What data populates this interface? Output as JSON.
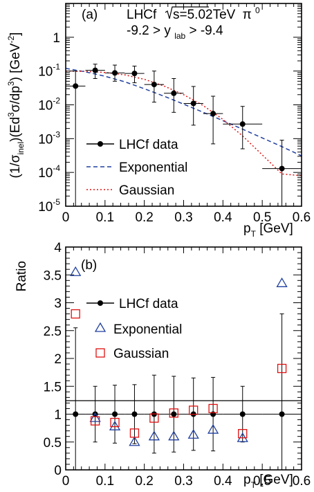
{
  "chart_data": [
    {
      "type": "scatter",
      "panel_label": "(a)",
      "header": {
        "experiment": "LHCf",
        "energy_pre": "s=5.02TeV",
        "particle": "π",
        "particle_sup": "0",
        "rapidity_left": "-9.2 > y",
        "rapidity_sub": "lab",
        "rapidity_right": " > -9.4"
      },
      "xlabel": "p",
      "xlabel_sub": "T",
      "xlabel_unit": " [GeV]",
      "ylabel": {
        "p1": "(1/σ",
        "p1_sub": "inel",
        "p2": ")(Ed",
        "p2_sup": "3",
        "p3": "σ/dp",
        "p3_sup": "3",
        "p4": ") [GeV",
        "p4_sup": "-2",
        "p5": "]"
      },
      "xlim": [
        0,
        0.6
      ],
      "ylim": [
        1e-05,
        10
      ],
      "yscale": "log",
      "xticks": [
        "0",
        "0.1",
        "0.2",
        "0.3",
        "0.4",
        "0.5",
        "0.6"
      ],
      "yticks": [
        {
          "base": "10",
          "exp": "-5",
          "value": 1e-05
        },
        {
          "base": "10",
          "exp": "-4",
          "value": 0.0001
        },
        {
          "base": "10",
          "exp": "-3",
          "value": 0.001
        },
        {
          "base": "10",
          "exp": "-2",
          "value": 0.01
        },
        {
          "base": "10",
          "exp": "-1",
          "value": 0.1
        },
        {
          "base": "1",
          "exp": "",
          "value": 1
        }
      ],
      "series": [
        {
          "name": "LHCf data",
          "color": "#000000",
          "marker": "filled-circle",
          "points": [
            {
              "x": 0.025,
              "y": 0.036,
              "xerr": 0.025,
              "ylo": 1e-05,
              "yhi": 0.1
            },
            {
              "x": 0.075,
              "y": 0.105,
              "xerr": 0.025,
              "ylo": 0.06,
              "yhi": 0.16
            },
            {
              "x": 0.125,
              "y": 0.088,
              "xerr": 0.025,
              "ylo": 0.05,
              "yhi": 0.15
            },
            {
              "x": 0.175,
              "y": 0.085,
              "xerr": 0.025,
              "ylo": 0.045,
              "yhi": 0.14
            },
            {
              "x": 0.225,
              "y": 0.04,
              "xerr": 0.025,
              "ylo": 0.012,
              "yhi": 0.1
            },
            {
              "x": 0.275,
              "y": 0.022,
              "xerr": 0.025,
              "ylo": 0.006,
              "yhi": 0.06
            },
            {
              "x": 0.325,
              "y": 0.011,
              "xerr": 0.025,
              "ylo": 0.0025,
              "yhi": 0.035
            },
            {
              "x": 0.375,
              "y": 0.0055,
              "xerr": 0.025,
              "ylo": 0.0007,
              "yhi": 0.018
            },
            {
              "x": 0.45,
              "y": 0.0027,
              "xerr": 0.05,
              "ylo": 0.0005,
              "yhi": 0.009
            },
            {
              "x": 0.55,
              "y": 0.00013,
              "xerr": 0.05,
              "ylo": 1e-05,
              "yhi": 0.0009
            }
          ]
        },
        {
          "name": "Exponential",
          "color": "#1f3f9f",
          "line": "dashed",
          "x": [
            0,
            0.05,
            0.1,
            0.15,
            0.2,
            0.25,
            0.3,
            0.35,
            0.4,
            0.45,
            0.5,
            0.55,
            0.6
          ],
          "y": [
            0.12,
            0.095,
            0.07,
            0.048,
            0.03,
            0.018,
            0.0105,
            0.006,
            0.0034,
            0.0019,
            0.00105,
            0.00058,
            0.00031
          ]
        },
        {
          "name": "Gaussian",
          "color": "#e01010",
          "line": "dotted",
          "x": [
            0,
            0.05,
            0.1,
            0.15,
            0.2,
            0.25,
            0.3,
            0.35,
            0.4,
            0.45,
            0.5,
            0.55,
            0.6
          ],
          "y": [
            0.1,
            0.098,
            0.091,
            0.077,
            0.057,
            0.036,
            0.02,
            0.0095,
            0.0037,
            0.0012,
            0.00033,
            9e-05,
            8e-05
          ]
        }
      ],
      "legend": [
        "LHCf data",
        "Exponential",
        "Gaussian"
      ]
    },
    {
      "type": "scatter",
      "panel_label": "(b)",
      "ylabel": "Ratio",
      "xlabel": "p",
      "xlabel_sub": "T",
      "xlabel_unit": " [GeV]",
      "xlim": [
        0,
        0.6
      ],
      "ylim": [
        0,
        4
      ],
      "xticks": [
        "0",
        "0.1",
        "0.2",
        "0.3",
        "0.4",
        "0.5",
        "0.6"
      ],
      "yticks": [
        "0",
        "0.5",
        "1",
        "1.5",
        "2",
        "2.5",
        "3",
        "3.5",
        "4"
      ],
      "reference_line": 1,
      "series": [
        {
          "name": "LHCf data",
          "color": "#000000",
          "marker": "filled-circle",
          "points": [
            {
              "x": 0.025,
              "y": 1,
              "xerr": 0.025,
              "ylo": 0,
              "yhi": 2.55
            },
            {
              "x": 0.075,
              "y": 1,
              "xerr": 0.025,
              "ylo": 0.5,
              "yhi": 1.5
            },
            {
              "x": 0.125,
              "y": 1,
              "xerr": 0.025,
              "ylo": 0.48,
              "yhi": 1.52
            },
            {
              "x": 0.175,
              "y": 1,
              "xerr": 0.025,
              "ylo": 0.47,
              "yhi": 1.53
            },
            {
              "x": 0.225,
              "y": 1,
              "xerr": 0.025,
              "ylo": 0.3,
              "yhi": 1.7
            },
            {
              "x": 0.275,
              "y": 1,
              "xerr": 0.025,
              "ylo": 0.32,
              "yhi": 1.68
            },
            {
              "x": 0.325,
              "y": 1,
              "xerr": 0.025,
              "ylo": 0.35,
              "yhi": 1.65
            },
            {
              "x": 0.375,
              "y": 1,
              "xerr": 0.025,
              "ylo": 0.34,
              "yhi": 1.66
            },
            {
              "x": 0.45,
              "y": 1,
              "xerr": 0.05,
              "ylo": 0.5,
              "yhi": 1.5
            },
            {
              "x": 0.55,
              "y": 1,
              "xerr": 0.05,
              "ylo": 0,
              "yhi": 2.8
            }
          ]
        },
        {
          "name": "Exponential",
          "color": "#1f3f9f",
          "marker": "open-triangle",
          "points": [
            {
              "x": 0.025,
              "y": 3.55
            },
            {
              "x": 0.075,
              "y": 0.93
            },
            {
              "x": 0.125,
              "y": 0.78
            },
            {
              "x": 0.175,
              "y": 0.5
            },
            {
              "x": 0.225,
              "y": 0.6
            },
            {
              "x": 0.275,
              "y": 0.6
            },
            {
              "x": 0.325,
              "y": 0.63
            },
            {
              "x": 0.375,
              "y": 0.72
            },
            {
              "x": 0.45,
              "y": 0.57
            },
            {
              "x": 0.55,
              "y": 3.35
            }
          ]
        },
        {
          "name": "Gaussian",
          "color": "#e01010",
          "marker": "open-square",
          "points": [
            {
              "x": 0.025,
              "y": 2.8
            },
            {
              "x": 0.075,
              "y": 0.88
            },
            {
              "x": 0.125,
              "y": 0.85
            },
            {
              "x": 0.175,
              "y": 0.66
            },
            {
              "x": 0.225,
              "y": 0.93
            },
            {
              "x": 0.275,
              "y": 1.02
            },
            {
              "x": 0.325,
              "y": 1.07
            },
            {
              "x": 0.375,
              "y": 1.1
            },
            {
              "x": 0.45,
              "y": 0.65
            },
            {
              "x": 0.55,
              "y": 1.82
            }
          ]
        }
      ],
      "legend": [
        "LHCf data",
        "Exponential",
        "Gaussian"
      ]
    }
  ]
}
